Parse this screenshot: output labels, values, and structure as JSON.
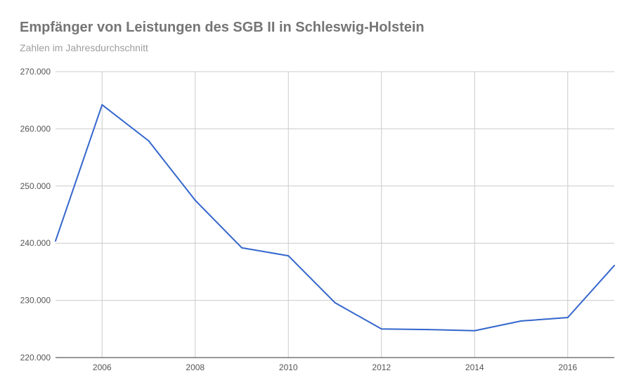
{
  "chart_data": {
    "type": "line",
    "title": "Empfänger von Leistungen des SGB II in Schleswig-Holstein",
    "subtitle": "Zahlen im Jahresdurchschnitt",
    "xlabel": "",
    "ylabel": "",
    "x": [
      2005,
      2006,
      2007,
      2008,
      2009,
      2010,
      2011,
      2012,
      2013,
      2014,
      2015,
      2016,
      2017
    ],
    "series": [
      {
        "values": [
          240400,
          264200,
          257900,
          247500,
          239200,
          237800,
          229600,
          225000,
          224900,
          224700,
          226400,
          227000,
          236100
        ]
      }
    ],
    "xlim": [
      2005,
      2017
    ],
    "ylim": [
      220000,
      270000
    ],
    "x_ticks": [
      2006,
      2008,
      2010,
      2012,
      2014,
      2016
    ],
    "x_tick_labels": [
      "2006",
      "2008",
      "2010",
      "2012",
      "2014",
      "2016"
    ],
    "y_ticks": [
      220000,
      230000,
      240000,
      250000,
      260000,
      270000
    ],
    "y_tick_labels": [
      "220.000",
      "230.000",
      "240.000",
      "250.000",
      "260.000",
      "270.000"
    ],
    "grid": true,
    "colors": {
      "line": "#3366cc",
      "grid": "#cccccc",
      "axis": "#333333"
    }
  }
}
